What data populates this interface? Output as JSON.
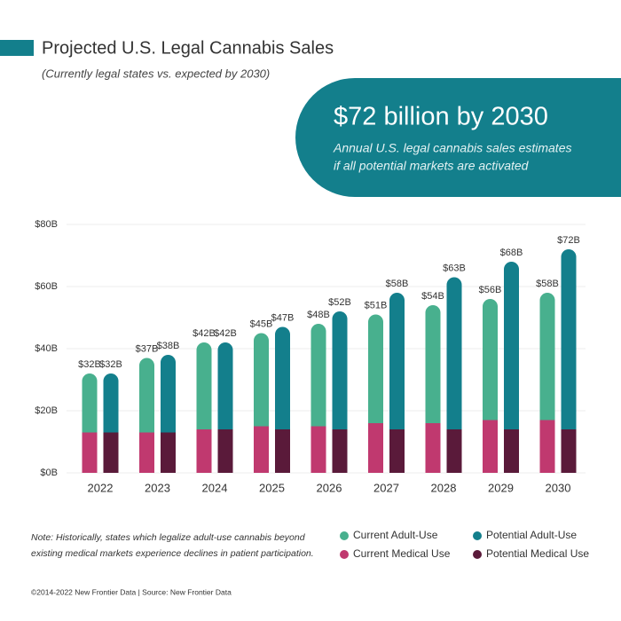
{
  "chart_data": {
    "type": "stacked_bar",
    "title": "Projected U.S. Legal Cannabis Sales",
    "subtitle": "(Currently legal states vs. expected by 2030)",
    "callout": {
      "title": "$72 billion by 2030",
      "lines": [
        "Annual U.S. legal cannabis sales estimates",
        "if all potential markets are activated"
      ]
    },
    "categories": [
      "2022",
      "2023",
      "2024",
      "2025",
      "2026",
      "2027",
      "2028",
      "2029",
      "2030"
    ],
    "series": [
      {
        "name": "Current Medical Use",
        "stack": "current",
        "color": "#c0396f",
        "values": [
          13,
          13,
          14,
          15,
          15,
          16,
          16,
          17,
          17
        ]
      },
      {
        "name": "Current Adult-Use",
        "stack": "current",
        "color": "#48b08e",
        "values": [
          19,
          24,
          28,
          30,
          33,
          35,
          38,
          39,
          41
        ]
      },
      {
        "name": "Potential Medical Use",
        "stack": "potential",
        "color": "#5a1a3a",
        "values": [
          13,
          13,
          14,
          14,
          14,
          14,
          14,
          14,
          14
        ]
      },
      {
        "name": "Potential Adult-Use",
        "stack": "potential",
        "color": "#137f8c",
        "values": [
          19,
          25,
          28,
          33,
          38,
          44,
          49,
          54,
          58
        ]
      }
    ],
    "totals": {
      "current": {
        "values": [
          32,
          37,
          42,
          45,
          48,
          51,
          54,
          56,
          58
        ],
        "value_labels": [
          "$32B",
          "$37B",
          "$42B",
          "$45B",
          "$48B",
          "$51B",
          "$54B",
          "$56B",
          "$58B"
        ]
      },
      "potential": {
        "values": [
          32,
          38,
          42,
          47,
          52,
          58,
          63,
          68,
          72
        ],
        "value_labels": [
          "$32B",
          "$38B",
          "$42B",
          "$47B",
          "$52B",
          "$58B",
          "$63B",
          "$68B",
          "$72B"
        ]
      }
    },
    "ylim": [
      0,
      80
    ],
    "yticks": [
      {
        "value": 0,
        "label": "$0B"
      },
      {
        "value": 20,
        "label": "$20B"
      },
      {
        "value": 40,
        "label": "$40B"
      },
      {
        "value": 60,
        "label": "$60B"
      },
      {
        "value": 80,
        "label": "$80B"
      }
    ],
    "grid": true,
    "legend": "bottom-right",
    "note": [
      "Note: Historically, states which legalize adult-use cannabis beyond",
      "existing medical markets experience declines in patient participation."
    ],
    "footer": "©2014-2022  New Frontier Data | Source: New Frontier Data"
  }
}
